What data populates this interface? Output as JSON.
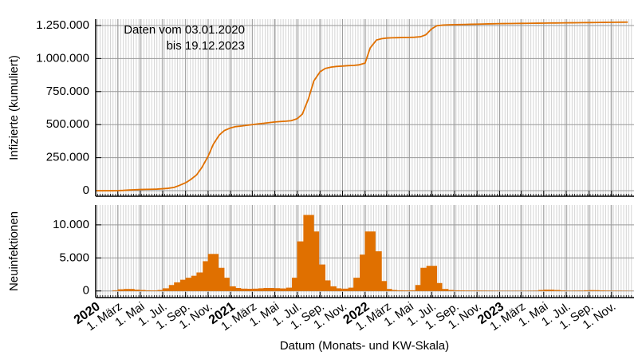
{
  "chart_data": [
    {
      "type": "line",
      "ylabel": "Infizierte (kumuliert)",
      "annotation": [
        "Daten vom 03.01.2020",
        "bis 19.12.2023"
      ],
      "xlim": [
        "2020-01-01",
        "2024-01-01"
      ],
      "ylim": [
        -42000,
        1298000
      ],
      "yticks": [
        0,
        {
          "value": 250000,
          "label": "250.000"
        },
        {
          "value": 500000,
          "label": "500.000"
        },
        {
          "value": 750000,
          "label": "750.000"
        },
        {
          "value": 1000000,
          "label": "1.000.000"
        },
        {
          "value": 1250000,
          "label": "1.250.000"
        }
      ],
      "grid": true,
      "minor_grid": "weekly",
      "x": [
        "2020-01-03",
        "2020-01-15",
        "2020-02-01",
        "2020-02-15",
        "2020-03-01",
        "2020-03-15",
        "2020-04-01",
        "2020-04-15",
        "2020-05-01",
        "2020-05-15",
        "2020-06-01",
        "2020-06-15",
        "2020-07-01",
        "2020-07-15",
        "2020-08-01",
        "2020-08-15",
        "2020-09-01",
        "2020-09-15",
        "2020-10-01",
        "2020-10-15",
        "2020-11-01",
        "2020-11-15",
        "2020-12-01",
        "2020-12-15",
        "2021-01-01",
        "2021-01-15",
        "2021-02-01",
        "2021-02-15",
        "2021-03-01",
        "2021-03-15",
        "2021-04-01",
        "2021-04-15",
        "2021-05-01",
        "2021-05-15",
        "2021-06-01",
        "2021-06-15",
        "2021-07-01",
        "2021-07-15",
        "2021-08-01",
        "2021-08-15",
        "2021-09-01",
        "2021-09-15",
        "2021-10-01",
        "2021-10-15",
        "2021-11-01",
        "2021-11-15",
        "2021-12-01",
        "2021-12-15",
        "2022-01-01",
        "2022-01-15",
        "2022-02-01",
        "2022-02-15",
        "2022-03-01",
        "2022-03-15",
        "2022-04-01",
        "2022-04-15",
        "2022-05-01",
        "2022-05-15",
        "2022-06-01",
        "2022-06-15",
        "2022-07-01",
        "2022-07-15",
        "2022-08-01",
        "2022-08-15",
        "2022-09-01",
        "2022-09-15",
        "2022-10-01",
        "2022-10-15",
        "2022-11-01",
        "2022-11-15",
        "2022-12-01",
        "2022-12-15",
        "2023-01-01",
        "2023-01-15",
        "2023-02-01",
        "2023-02-15",
        "2023-03-01",
        "2023-03-15",
        "2023-04-01",
        "2023-04-15",
        "2023-05-01",
        "2023-05-15",
        "2023-06-01",
        "2023-06-15",
        "2023-07-01",
        "2023-07-15",
        "2023-08-01",
        "2023-08-15",
        "2023-09-01",
        "2023-09-15",
        "2023-10-01",
        "2023-10-15",
        "2023-11-01",
        "2023-11-15",
        "2023-12-01",
        "2023-12-15"
      ],
      "series": [
        {
          "name": "Infizierte",
          "color": "#e07000",
          "values": [
            0,
            0,
            0,
            0,
            500,
            2000,
            5000,
            7000,
            9000,
            10000,
            11000,
            12000,
            15000,
            18000,
            25000,
            40000,
            60000,
            85000,
            120000,
            175000,
            260000,
            350000,
            420000,
            455000,
            475000,
            485000,
            490000,
            495000,
            500000,
            505000,
            510000,
            515000,
            520000,
            523000,
            526000,
            530000,
            545000,
            580000,
            700000,
            830000,
            900000,
            925000,
            935000,
            940000,
            943000,
            946000,
            948000,
            952000,
            965000,
            1080000,
            1140000,
            1150000,
            1155000,
            1157000,
            1158000,
            1159000,
            1160000,
            1161000,
            1165000,
            1180000,
            1225000,
            1248000,
            1253000,
            1255000,
            1256000,
            1257000,
            1258000,
            1259000,
            1260000,
            1261000,
            1262000,
            1263000,
            1264000,
            1264500,
            1265000,
            1265500,
            1266000,
            1266500,
            1267000,
            1267500,
            1268000,
            1268500,
            1269000,
            1269500,
            1270000,
            1270500,
            1271000,
            1271500,
            1272000,
            1272500,
            1273000,
            1273500,
            1274000,
            1274500,
            1275000,
            1275500
          ]
        }
      ]
    },
    {
      "type": "bar",
      "ylabel": "Neuinfektionen",
      "xlabel": "Datum (Monats- und KW-Skala)",
      "xlim": [
        "2020-01-01",
        "2024-01-01"
      ],
      "ylim": [
        -1000,
        13000
      ],
      "yticks": [
        0,
        {
          "value": 5000,
          "label": "5.000"
        },
        {
          "value": 10000,
          "label": "10.000"
        }
      ],
      "grid": true,
      "minor_grid": "weekly",
      "xticks": [
        {
          "value": "2020-01-01",
          "label": "2020"
        },
        {
          "value": "2020-03-01",
          "label": "1. März"
        },
        {
          "value": "2020-05-01",
          "label": "1. Mai"
        },
        {
          "value": "2020-07-01",
          "label": "1. Jul."
        },
        {
          "value": "2020-09-01",
          "label": "1. Sep."
        },
        {
          "value": "2020-11-01",
          "label": "1. Nov."
        },
        {
          "value": "2021-01-01",
          "label": "2021"
        },
        {
          "value": "2021-03-01",
          "label": "1. März"
        },
        {
          "value": "2021-05-01",
          "label": "1. Mai"
        },
        {
          "value": "2021-07-01",
          "label": "1. Jul."
        },
        {
          "value": "2021-09-01",
          "label": "1. Sep."
        },
        {
          "value": "2021-11-01",
          "label": "1. Nov."
        },
        {
          "value": "2022-01-01",
          "label": "2022"
        },
        {
          "value": "2022-03-01",
          "label": "1. März"
        },
        {
          "value": "2022-05-01",
          "label": "1. Mai"
        },
        {
          "value": "2022-07-01",
          "label": "1. Jul."
        },
        {
          "value": "2022-09-01",
          "label": "1. Sep."
        },
        {
          "value": "2022-11-01",
          "label": "1. Nov."
        },
        {
          "value": "2023-01-01",
          "label": "2023"
        },
        {
          "value": "2023-03-01",
          "label": "1. März"
        },
        {
          "value": "2023-05-01",
          "label": "1. Mai"
        },
        {
          "value": "2023-07-01",
          "label": "1. Jul."
        },
        {
          "value": "2023-09-01",
          "label": "1. Sep."
        },
        {
          "value": "2023-11-01",
          "label": "1. Nov."
        }
      ],
      "x": [
        "2020-01-03",
        "2020-01-15",
        "2020-02-01",
        "2020-02-15",
        "2020-03-01",
        "2020-03-15",
        "2020-04-01",
        "2020-04-15",
        "2020-05-01",
        "2020-05-15",
        "2020-06-01",
        "2020-06-15",
        "2020-07-01",
        "2020-07-15",
        "2020-08-01",
        "2020-08-15",
        "2020-09-01",
        "2020-09-15",
        "2020-10-01",
        "2020-10-15",
        "2020-11-01",
        "2020-11-15",
        "2020-12-01",
        "2020-12-15",
        "2021-01-01",
        "2021-01-15",
        "2021-02-01",
        "2021-02-15",
        "2021-03-01",
        "2021-03-15",
        "2021-04-01",
        "2021-04-15",
        "2021-05-01",
        "2021-05-15",
        "2021-06-01",
        "2021-06-15",
        "2021-07-01",
        "2021-07-15",
        "2021-08-01",
        "2021-08-15",
        "2021-09-01",
        "2021-09-15",
        "2021-10-01",
        "2021-10-15",
        "2021-11-01",
        "2021-11-15",
        "2021-12-01",
        "2021-12-15",
        "2022-01-01",
        "2022-01-15",
        "2022-02-01",
        "2022-02-15",
        "2022-03-01",
        "2022-03-15",
        "2022-04-01",
        "2022-04-15",
        "2022-05-01",
        "2022-05-15",
        "2022-06-01",
        "2022-06-15",
        "2022-07-01",
        "2022-07-15",
        "2022-08-01",
        "2022-08-15",
        "2022-09-01",
        "2022-09-15",
        "2022-10-01",
        "2022-10-15",
        "2022-11-01",
        "2022-11-15",
        "2022-12-01",
        "2022-12-15",
        "2023-01-01",
        "2023-01-15",
        "2023-02-01",
        "2023-02-15",
        "2023-03-01",
        "2023-03-15",
        "2023-04-01",
        "2023-04-15",
        "2023-05-01",
        "2023-05-15",
        "2023-06-01",
        "2023-06-15",
        "2023-07-01",
        "2023-07-15",
        "2023-08-01",
        "2023-08-15",
        "2023-09-01",
        "2023-09-15",
        "2023-10-01",
        "2023-10-15",
        "2023-11-01",
        "2023-11-15",
        "2023-12-01",
        "2023-12-15"
      ],
      "series": [
        {
          "name": "Neuinfektionen",
          "color": "#e07000",
          "values": [
            0,
            0,
            0,
            0,
            100,
            250,
            300,
            200,
            150,
            100,
            80,
            60,
            150,
            400,
            900,
            1300,
            1700,
            2000,
            2300,
            2800,
            4500,
            5600,
            3500,
            2000,
            700,
            450,
            350,
            330,
            300,
            350,
            400,
            450,
            420,
            380,
            350,
            500,
            2000,
            7500,
            11500,
            9000,
            4000,
            1600,
            700,
            400,
            300,
            350,
            500,
            2000,
            5500,
            9000,
            6000,
            1500,
            300,
            150,
            100,
            80,
            80,
            100,
            900,
            3500,
            3800,
            1200,
            300,
            150,
            100,
            80,
            60,
            50,
            50,
            50,
            40,
            40,
            30,
            30,
            30,
            30,
            30,
            30,
            40,
            40,
            150,
            200,
            150,
            80,
            40,
            40,
            50,
            50,
            100,
            120,
            80,
            60,
            40,
            40,
            30,
            30
          ]
        }
      ]
    }
  ]
}
